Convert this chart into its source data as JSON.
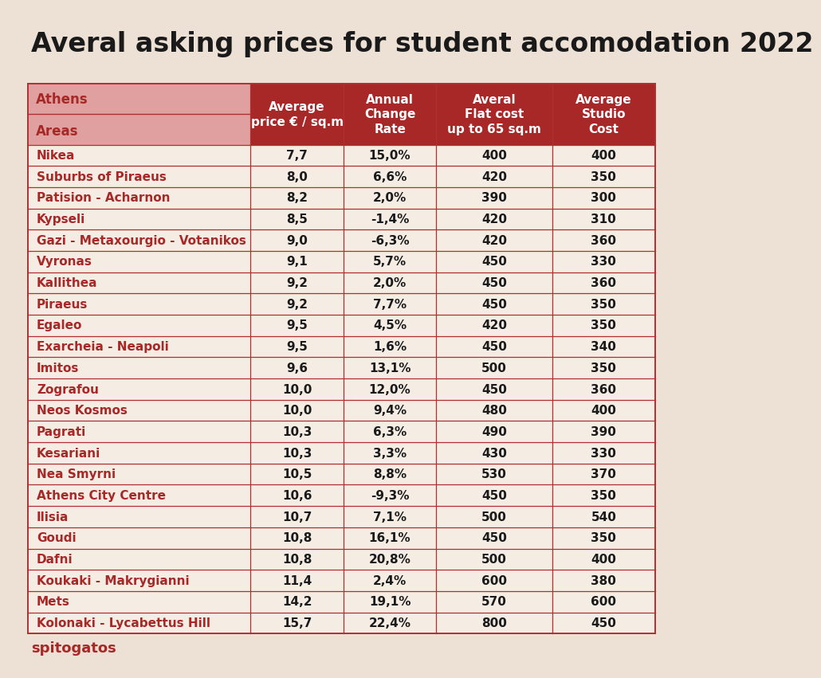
{
  "title": "Averal asking prices for student accomodation 2022",
  "columns": [
    "Average\nprice € / sq.m",
    "Annual\nChange\nRate",
    "Averal\nFlat cost\nup to 65 sq.m",
    "Average\nStudio\nCost"
  ],
  "areas": [
    "Nikea",
    "Suburbs of Piraeus",
    "Patision - Acharnon",
    "Kypseli",
    "Gazi - Metaxourgio - Votanikos",
    "Vyronas",
    "Kallithea",
    "Piraeus",
    "Egaleo",
    "Exarcheia - Neapoli",
    "Imitos",
    "Zografou",
    "Neos Kosmos",
    "Pagrati",
    "Kesariani",
    "Nea Smyrni",
    "Athens City Centre",
    "Ilisia",
    "Goudi",
    "Dafni",
    "Koukaki - Makrygianni",
    "Mets",
    "Kolonaki - Lycabettus Hill"
  ],
  "avg_price": [
    "7,7",
    "8,0",
    "8,2",
    "8,5",
    "9,0",
    "9,1",
    "9,2",
    "9,2",
    "9,5",
    "9,5",
    "9,6",
    "10,0",
    "10,0",
    "10,3",
    "10,3",
    "10,5",
    "10,6",
    "10,7",
    "10,8",
    "10,8",
    "11,4",
    "14,2",
    "15,7"
  ],
  "annual_change": [
    "15,0%",
    "6,6%",
    "2,0%",
    "-1,4%",
    "-6,3%",
    "5,7%",
    "2,0%",
    "7,7%",
    "4,5%",
    "1,6%",
    "13,1%",
    "12,0%",
    "9,4%",
    "6,3%",
    "3,3%",
    "8,8%",
    "-9,3%",
    "7,1%",
    "16,1%",
    "20,8%",
    "2,4%",
    "19,1%",
    "22,4%"
  ],
  "flat_cost": [
    "400",
    "420",
    "390",
    "420",
    "420",
    "450",
    "450",
    "450",
    "420",
    "450",
    "500",
    "450",
    "480",
    "490",
    "430",
    "530",
    "450",
    "500",
    "450",
    "500",
    "600",
    "570",
    "800"
  ],
  "studio_cost": [
    "400",
    "350",
    "300",
    "310",
    "360",
    "330",
    "360",
    "350",
    "350",
    "340",
    "350",
    "360",
    "400",
    "390",
    "330",
    "370",
    "350",
    "540",
    "350",
    "400",
    "380",
    "600",
    "450"
  ],
  "bg_color": "#ede0d4",
  "header_dark_red": "#a82828",
  "header_light_pink": "#e0a0a0",
  "row_bg": "#f5ece4",
  "text_dark_red": "#a82828",
  "text_black": "#1a1a1a",
  "border_red": "#b03030",
  "source_text": "spitogatos",
  "title_fontsize": 24,
  "header_fontsize": 11,
  "data_fontsize": 11,
  "area_fontsize": 11
}
